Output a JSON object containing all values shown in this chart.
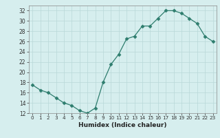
{
  "x": [
    0,
    1,
    2,
    3,
    4,
    5,
    6,
    7,
    8,
    9,
    10,
    11,
    12,
    13,
    14,
    15,
    16,
    17,
    18,
    19,
    20,
    21,
    22,
    23
  ],
  "y": [
    17.5,
    16.5,
    16.0,
    15.0,
    14.0,
    13.5,
    12.5,
    12.0,
    13.0,
    18.0,
    21.5,
    23.5,
    26.5,
    27.0,
    29.0,
    29.0,
    30.5,
    32.0,
    32.0,
    31.5,
    30.5,
    29.5,
    27.0,
    26.0
  ],
  "line_color": "#2e7d6e",
  "marker": "D",
  "markersize": 2.5,
  "background_color": "#d6eeee",
  "grid_color": "#b8d8d8",
  "xlabel": "Humidex (Indice chaleur)",
  "ylim": [
    12,
    33
  ],
  "xlim": [
    -0.5,
    23.5
  ],
  "yticks": [
    12,
    14,
    16,
    18,
    20,
    22,
    24,
    26,
    28,
    30,
    32
  ],
  "xticks": [
    0,
    1,
    2,
    3,
    4,
    5,
    6,
    7,
    8,
    9,
    10,
    11,
    12,
    13,
    14,
    15,
    16,
    17,
    18,
    19,
    20,
    21,
    22,
    23
  ]
}
